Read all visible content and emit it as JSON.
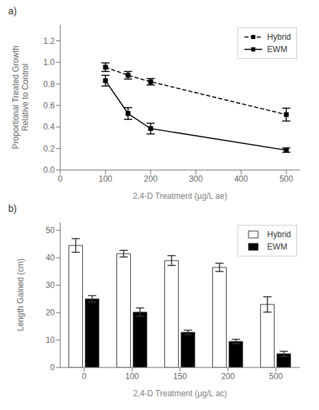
{
  "chart_data": [
    {
      "type": "line",
      "title": "a)",
      "x_label": "2,4-D Treatment (μg/L ae)",
      "y_label": "Proportional Treated Growth\nRelative to Control",
      "x": [
        100,
        150,
        200,
        500
      ],
      "series": [
        {
          "name": "Hybrid",
          "color": "#000000",
          "line_style": "dashed",
          "marker": "square",
          "values": [
            0.955,
            0.88,
            0.82,
            0.515
          ],
          "yerr": [
            0.04,
            0.035,
            0.03,
            0.06
          ]
        },
        {
          "name": "EWM",
          "color": "#000000",
          "line_style": "solid",
          "marker": "square",
          "values": [
            0.83,
            0.525,
            0.385,
            0.185
          ],
          "yerr": [
            0.05,
            0.055,
            0.05,
            0.02
          ]
        }
      ],
      "xlim": [
        0,
        530
      ],
      "ylim": [
        0,
        1.35
      ],
      "xticks": [
        0,
        100,
        200,
        300,
        400,
        500
      ],
      "yticks": [
        {
          "value": 0,
          "label": "0.0"
        },
        0.2,
        0.4,
        0.6,
        0.8,
        {
          "value": 1.0,
          "label": "1.0"
        },
        1.2
      ],
      "grid": false,
      "legend": "upper right"
    },
    {
      "type": "bar",
      "title": "b)",
      "x_label": "2,4-D Treatment (μg/L ac)",
      "y_label": "Length Gained (cm)",
      "categories": [
        "0",
        "100",
        "150",
        "200",
        "500"
      ],
      "series": [
        {
          "name": "Hybrid",
          "color": "#ffffff",
          "values": [
            44.5,
            41.5,
            39.0,
            36.5,
            23.0
          ],
          "yerr": [
            2.5,
            1.2,
            1.8,
            1.5,
            2.8
          ]
        },
        {
          "name": "EWM",
          "color": "#000000",
          "values": [
            25.0,
            20.2,
            12.8,
            9.5,
            5.0
          ],
          "yerr": [
            1.2,
            1.5,
            0.8,
            0.8,
            0.9
          ]
        }
      ],
      "ylim": [
        0,
        53
      ],
      "yticks": [
        0,
        10,
        20,
        30,
        40,
        50
      ],
      "grid": false,
      "legend": "upper right"
    }
  ]
}
